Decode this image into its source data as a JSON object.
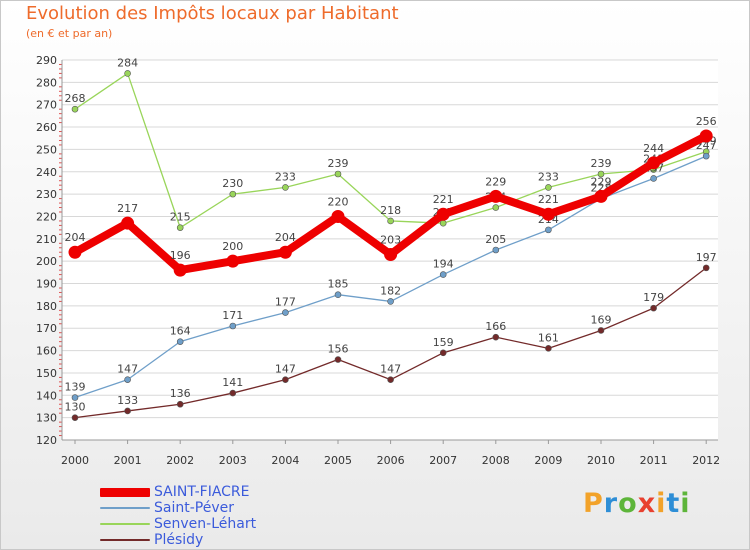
{
  "chart_data": {
    "type": "line",
    "title": "Evolution des Impôts locaux par Habitant",
    "subtitle": "(en € et par an)",
    "x": [
      "2000",
      "2001",
      "2002",
      "2003",
      "2004",
      "2005",
      "2006",
      "2007",
      "2008",
      "2009",
      "2010",
      "2011",
      "2012"
    ],
    "ylim": [
      120,
      290
    ],
    "yticks": [
      120,
      130,
      140,
      150,
      160,
      170,
      180,
      190,
      200,
      210,
      220,
      230,
      240,
      250,
      260,
      270,
      280,
      290
    ],
    "series": [
      {
        "name": "Senven-Léhart",
        "color": "#99d55a",
        "values": [
          268,
          284,
          215,
          230,
          233,
          239,
          218,
          217,
          224,
          233,
          239,
          241,
          249
        ]
      },
      {
        "name": "Saint-Péver",
        "color": "#6f9fc9",
        "values": [
          139,
          147,
          164,
          171,
          177,
          185,
          182,
          194,
          205,
          214,
          228,
          237,
          247
        ]
      },
      {
        "name": "Plésidy",
        "color": "#732a2a",
        "values": [
          130,
          133,
          136,
          141,
          147,
          156,
          147,
          159,
          166,
          161,
          169,
          179,
          197
        ]
      },
      {
        "name": "SAINT-FIACRE",
        "color": "#ee0000",
        "values": [
          204,
          217,
          196,
          200,
          204,
          220,
          203,
          221,
          229,
          221,
          229,
          244,
          256
        ]
      }
    ],
    "legend_order": [
      "SAINT-FIACRE",
      "Saint-Péver",
      "Senven-Léhart",
      "Plésidy"
    ]
  },
  "logo": {
    "letters": [
      "P",
      "r",
      "o",
      "x",
      "i",
      "t",
      "i"
    ],
    "colors": [
      "#f2a229",
      "#2e8ed6",
      "#5db53a",
      "#e8402f",
      "#f2a229",
      "#2e8ed6",
      "#5db53a"
    ]
  }
}
